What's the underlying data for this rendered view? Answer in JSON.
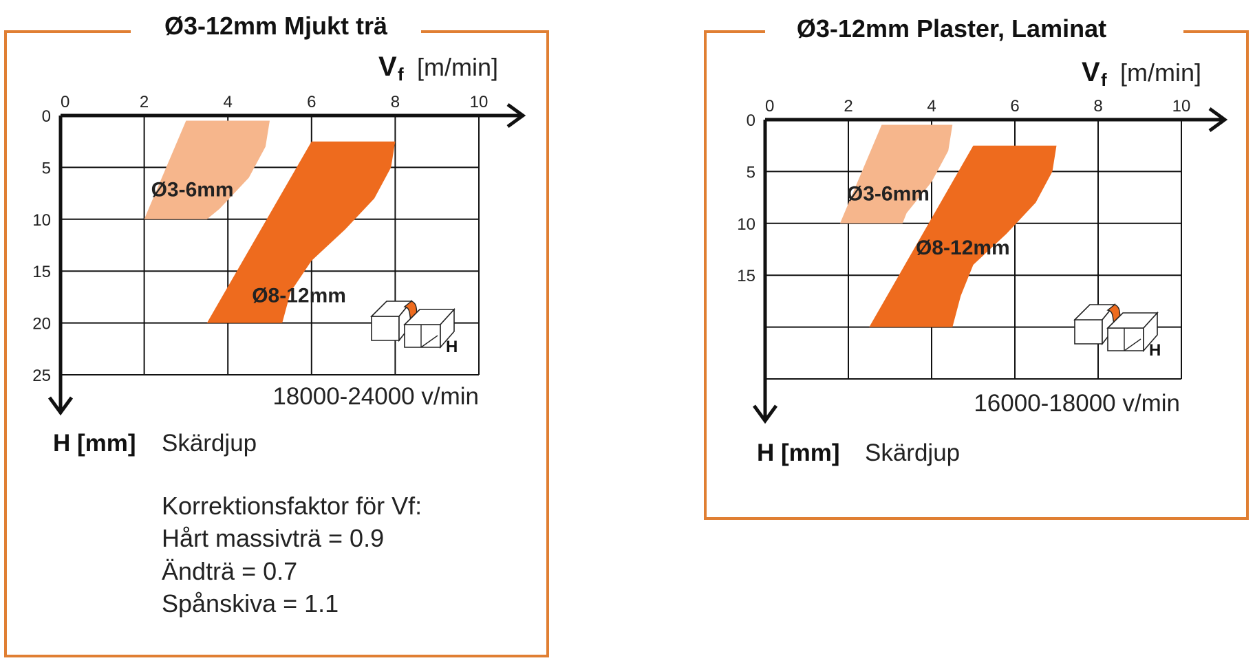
{
  "colors": {
    "frame": "#e07f33",
    "band_small": "#f6b68c",
    "band_large": "#ee6b1e",
    "grid": "#111111"
  },
  "chart_data": [
    {
      "type": "area",
      "title": "Ø3-12mm Mjukt trä",
      "x_axis": {
        "symbol": "V",
        "subscript": "f",
        "unit": "[m/min]",
        "range": [
          0,
          10
        ],
        "ticks": [
          "0",
          "2",
          "4",
          "6",
          "8",
          "10"
        ]
      },
      "y_axis": {
        "label_bold": "H [mm]",
        "label": "Skärdjup",
        "range": [
          0,
          25
        ],
        "ticks": [
          "0",
          "5",
          "10",
          "15",
          "20",
          "25"
        ]
      },
      "rpm": "18000-24000 v/min",
      "series": [
        {
          "name": "Ø3-6mm",
          "color": "#f6b68c",
          "left": [
            [
              3,
              0.5
            ],
            [
              2,
              10
            ]
          ],
          "right": [
            [
              5,
              0.5
            ],
            [
              4.9,
              3
            ],
            [
              4.5,
              6
            ],
            [
              3.8,
              9
            ],
            [
              3.5,
              10
            ]
          ]
        },
        {
          "name": "Ø8-12mm",
          "color": "#ee6b1e",
          "left": [
            [
              6,
              2.5
            ],
            [
              3.5,
              20
            ]
          ],
          "right": [
            [
              8,
              2.5
            ],
            [
              7.9,
              5
            ],
            [
              7.5,
              8
            ],
            [
              6.8,
              11
            ],
            [
              6,
              14
            ],
            [
              5.5,
              17
            ],
            [
              5.3,
              20
            ]
          ]
        }
      ],
      "notes": {
        "heading": "Korrektionsfaktor för Vf:",
        "lines": [
          "Hårt massivträ = 0.9",
          "Ändträ = 0.7",
          "Spånskiva = 1.1"
        ]
      }
    },
    {
      "type": "area",
      "title": "Ø3-12mm Plaster, Laminat",
      "x_axis": {
        "symbol": "V",
        "subscript": "f",
        "unit": "[m/min]",
        "range": [
          0,
          10
        ],
        "ticks": [
          "0",
          "2",
          "4",
          "6",
          "8",
          "10"
        ]
      },
      "y_axis": {
        "label_bold": "H [mm]",
        "label": "Skärdjup",
        "range": [
          0,
          25
        ],
        "ticks": [
          "0",
          "5",
          "10",
          "15"
        ]
      },
      "rpm": "16000-18000 v/min",
      "series": [
        {
          "name": "Ø3-6mm",
          "color": "#f6b68c",
          "left": [
            [
              2.8,
              0.5
            ],
            [
              1.8,
              10
            ]
          ],
          "right": [
            [
              4.5,
              0.5
            ],
            [
              4.4,
              3
            ],
            [
              4.0,
              6
            ],
            [
              3.4,
              9
            ],
            [
              3.3,
              10
            ]
          ]
        },
        {
          "name": "Ø8-12mm",
          "color": "#ee6b1e",
          "left": [
            [
              5,
              2.5
            ],
            [
              2.5,
              20
            ]
          ],
          "right": [
            [
              7,
              2.5
            ],
            [
              6.9,
              5
            ],
            [
              6.5,
              8
            ],
            [
              5.8,
              11
            ],
            [
              5.0,
              14
            ],
            [
              4.7,
              17
            ],
            [
              4.5,
              20
            ]
          ]
        }
      ]
    }
  ]
}
